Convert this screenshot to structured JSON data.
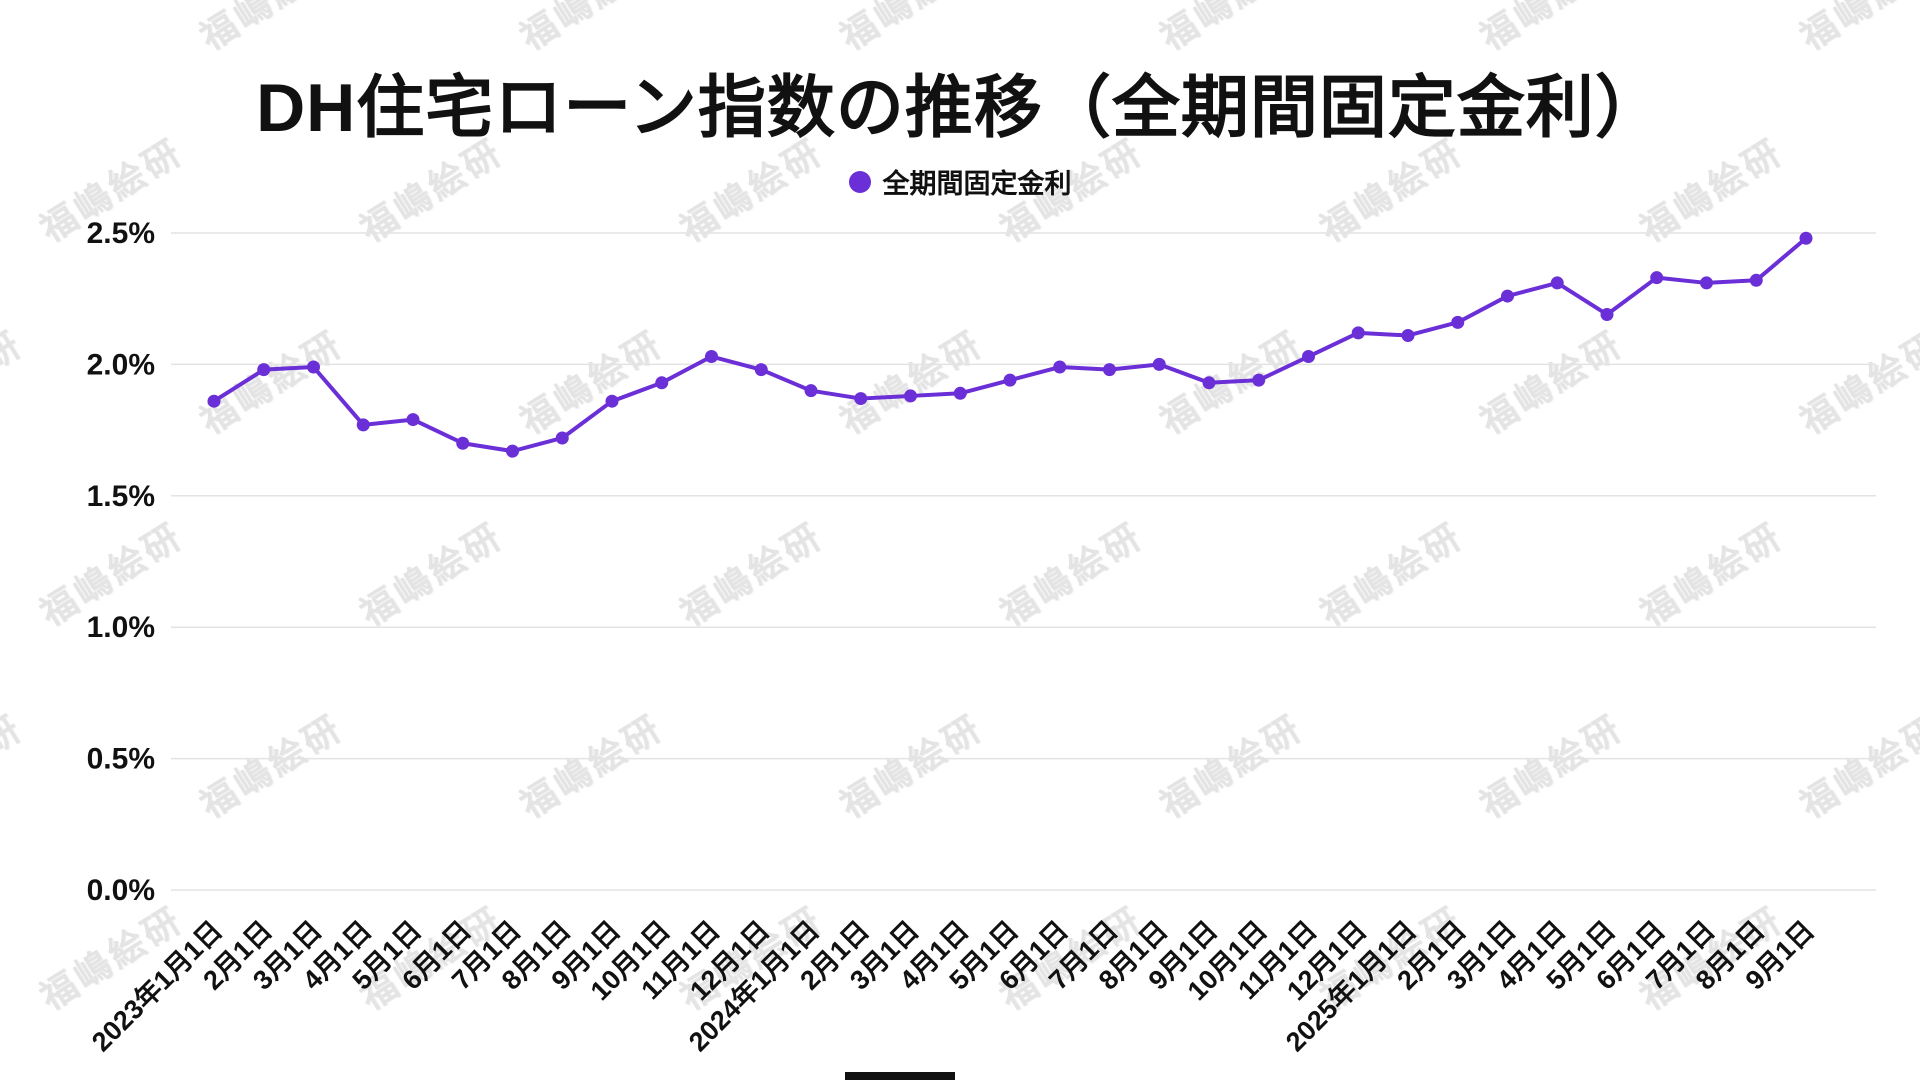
{
  "chart": {
    "title": "DH住宅ローン指数の推移（全期間固定金利）",
    "legend": "全期間固定金利"
  },
  "watermark": {
    "text": "福嶋絵研"
  },
  "chart_data": {
    "type": "line",
    "title": "DH住宅ローン指数の推移（全期間固定金利）",
    "categories": [
      "2023年1月1日",
      "2月1日",
      "3月1日",
      "4月1日",
      "5月1日",
      "6月1日",
      "7月1日",
      "8月1日",
      "9月1日",
      "10月1日",
      "11月1日",
      "12月1日",
      "2024年1月1日",
      "2月1日",
      "3月1日",
      "4月1日",
      "5月1日",
      "6月1日",
      "7月1日",
      "8月1日",
      "9月1日",
      "10月1日",
      "11月1日",
      "12月1日",
      "2025年1月1日",
      "2月1日",
      "3月1日",
      "4月1日",
      "5月1日",
      "6月1日",
      "7月1日",
      "8月1日",
      "9月1日"
    ],
    "series": [
      {
        "name": "全期間固定金利",
        "values": [
          1.86,
          1.98,
          1.99,
          1.77,
          1.79,
          1.7,
          1.67,
          1.72,
          1.86,
          1.93,
          2.03,
          1.98,
          1.9,
          1.87,
          1.88,
          1.89,
          1.94,
          1.99,
          1.98,
          2.0,
          1.93,
          1.94,
          2.03,
          2.12,
          2.11,
          2.16,
          2.26,
          2.31,
          2.19,
          2.33,
          2.31,
          2.32,
          2.48
        ]
      }
    ],
    "xlabel": "",
    "ylabel": "",
    "ylim": [
      0,
      2.5
    ],
    "yticks": [
      "0.0%",
      "0.5%",
      "1.0%",
      "1.5%",
      "2.0%",
      "2.5%"
    ],
    "grid": true,
    "legend_position": "top",
    "line_color": "#6a2fd6",
    "grid_color": "#e3e3e3",
    "text_color": "#111111"
  }
}
